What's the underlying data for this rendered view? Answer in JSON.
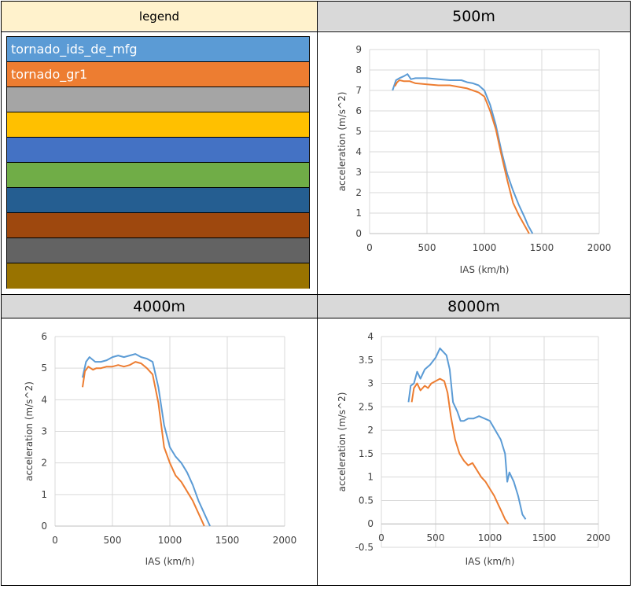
{
  "headers": {
    "legend": "legend",
    "chart1": "500m",
    "chart2": "4000m",
    "chart3": "8000m"
  },
  "legend_rows": [
    {
      "label": "tornado_ids_de_mfg",
      "color": "#5b9bd5"
    },
    {
      "label": "tornado_gr1",
      "color": "#ed7d31"
    },
    {
      "label": "",
      "color": "#a5a5a5"
    },
    {
      "label": "",
      "color": "#ffc000"
    },
    {
      "label": "",
      "color": "#4472c4"
    },
    {
      "label": "",
      "color": "#70ad47"
    },
    {
      "label": "",
      "color": "#255e91"
    },
    {
      "label": "",
      "color": "#9e480e"
    },
    {
      "label": "",
      "color": "#636363"
    },
    {
      "label": "",
      "color": "#997300"
    }
  ],
  "chart_data": [
    {
      "type": "line",
      "title": "500m",
      "xlabel": "IAS (km/h)",
      "ylabel": "acceleration (m/s^2)",
      "xlim": [
        0,
        2000
      ],
      "ylim": [
        0,
        9
      ],
      "xticks": [
        0,
        500,
        1000,
        1500,
        2000
      ],
      "yticks": [
        0,
        1,
        2,
        3,
        4,
        5,
        6,
        7,
        8,
        9
      ],
      "grid": true,
      "series": [
        {
          "name": "tornado_ids_de_mfg",
          "color": "#5b9bd5",
          "x": [
            200,
            230,
            260,
            300,
            330,
            360,
            400,
            500,
            600,
            700,
            800,
            850,
            900,
            950,
            1000,
            1050,
            1100,
            1150,
            1200,
            1250,
            1300,
            1350,
            1380,
            1420
          ],
          "y": [
            7.0,
            7.5,
            7.6,
            7.7,
            7.8,
            7.55,
            7.6,
            7.6,
            7.55,
            7.5,
            7.5,
            7.4,
            7.35,
            7.25,
            7.0,
            6.3,
            5.3,
            4.0,
            2.9,
            2.1,
            1.4,
            0.8,
            0.4,
            0.0
          ]
        },
        {
          "name": "tornado_gr1",
          "color": "#ed7d31",
          "x": [
            220,
            240,
            260,
            300,
            350,
            400,
            500,
            600,
            700,
            800,
            850,
            900,
            950,
            1000,
            1050,
            1100,
            1150,
            1200,
            1250,
            1300,
            1350,
            1390
          ],
          "y": [
            7.2,
            7.4,
            7.5,
            7.45,
            7.45,
            7.35,
            7.3,
            7.25,
            7.25,
            7.15,
            7.1,
            7.0,
            6.9,
            6.7,
            6.0,
            5.1,
            3.8,
            2.6,
            1.5,
            0.9,
            0.4,
            0.0
          ]
        }
      ]
    },
    {
      "type": "line",
      "title": "4000m",
      "xlabel": "IAS (km/h)",
      "ylabel": "acceleration (m/s^2)",
      "xlim": [
        0,
        2000
      ],
      "ylim": [
        0,
        6
      ],
      "xticks": [
        0,
        500,
        1000,
        1500,
        2000
      ],
      "yticks": [
        0,
        1,
        2,
        3,
        4,
        5,
        6
      ],
      "grid": true,
      "series": [
        {
          "name": "tornado_ids_de_mfg",
          "color": "#5b9bd5",
          "x": [
            240,
            270,
            300,
            350,
            400,
            450,
            500,
            550,
            600,
            650,
            700,
            750,
            800,
            850,
            900,
            950,
            1000,
            1050,
            1100,
            1150,
            1200,
            1250,
            1300,
            1350
          ],
          "y": [
            4.7,
            5.2,
            5.35,
            5.2,
            5.2,
            5.25,
            5.35,
            5.4,
            5.35,
            5.4,
            5.45,
            5.35,
            5.3,
            5.2,
            4.4,
            3.2,
            2.5,
            2.2,
            2.0,
            1.7,
            1.3,
            0.8,
            0.4,
            0.0
          ]
        },
        {
          "name": "tornado_gr1",
          "color": "#ed7d31",
          "x": [
            240,
            260,
            290,
            330,
            360,
            400,
            450,
            500,
            550,
            600,
            650,
            700,
            750,
            800,
            850,
            900,
            950,
            1000,
            1050,
            1100,
            1150,
            1200,
            1250,
            1300
          ],
          "y": [
            4.4,
            4.9,
            5.05,
            4.95,
            5.0,
            5.0,
            5.05,
            5.05,
            5.1,
            5.05,
            5.1,
            5.2,
            5.15,
            5.0,
            4.8,
            3.9,
            2.5,
            2.0,
            1.6,
            1.4,
            1.1,
            0.8,
            0.4,
            0.0
          ]
        }
      ]
    },
    {
      "type": "line",
      "title": "8000m",
      "xlabel": "IAS (km/h)",
      "ylabel": "acceleration (m/s^2)",
      "xlim": [
        0,
        2000
      ],
      "ylim": [
        -0.5,
        4
      ],
      "xticks": [
        0,
        500,
        1000,
        1500,
        2000
      ],
      "yticks": [
        -0.5,
        0,
        0.5,
        1,
        1.5,
        2,
        2.5,
        3,
        3.5,
        4
      ],
      "grid": true,
      "series": [
        {
          "name": "tornado_ids_de_mfg",
          "color": "#5b9bd5",
          "x": [
            250,
            270,
            300,
            330,
            360,
            400,
            450,
            500,
            540,
            560,
            600,
            630,
            660,
            700,
            730,
            760,
            800,
            850,
            900,
            950,
            1000,
            1050,
            1100,
            1140,
            1160,
            1180,
            1220,
            1260,
            1300,
            1330
          ],
          "y": [
            2.6,
            2.95,
            3.0,
            3.25,
            3.1,
            3.3,
            3.4,
            3.55,
            3.75,
            3.7,
            3.6,
            3.3,
            2.6,
            2.4,
            2.2,
            2.2,
            2.25,
            2.25,
            2.3,
            2.25,
            2.2,
            2.0,
            1.8,
            1.5,
            0.9,
            1.1,
            0.9,
            0.6,
            0.2,
            0.1
          ]
        },
        {
          "name": "tornado_gr1",
          "color": "#ed7d31",
          "x": [
            280,
            300,
            330,
            360,
            400,
            430,
            460,
            500,
            540,
            580,
            610,
            640,
            680,
            720,
            760,
            800,
            840,
            880,
            920,
            960,
            1000,
            1040,
            1080,
            1110,
            1140,
            1170
          ],
          "y": [
            2.6,
            2.9,
            3.0,
            2.85,
            2.95,
            2.9,
            3.0,
            3.05,
            3.1,
            3.05,
            2.8,
            2.3,
            1.8,
            1.5,
            1.35,
            1.25,
            1.3,
            1.15,
            1.0,
            0.9,
            0.75,
            0.6,
            0.4,
            0.25,
            0.1,
            0.0
          ]
        }
      ]
    }
  ]
}
